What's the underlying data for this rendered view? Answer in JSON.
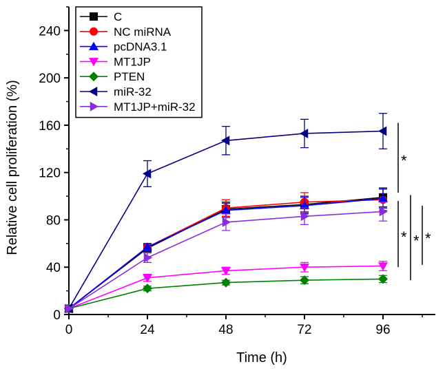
{
  "chart_data": {
    "type": "line",
    "title": "",
    "xlabel": "Time (h)",
    "ylabel": "Relative cell proliferation (%)",
    "xlim": [
      0,
      112
    ],
    "ylim": [
      0,
      260
    ],
    "xticks": [
      0,
      24,
      48,
      72,
      96
    ],
    "yticks": [
      0,
      40,
      80,
      120,
      160,
      200,
      240
    ],
    "x": [
      0,
      24,
      48,
      72,
      96
    ],
    "legend_position": "top-left",
    "grid": false,
    "series": [
      {
        "name": "C",
        "values": [
          5,
          56,
          89,
          93,
          99
        ],
        "errors": [
          0,
          3,
          6,
          7,
          8
        ],
        "color": "#000000",
        "marker": "square"
      },
      {
        "name": "NC miRNA",
        "values": [
          5,
          57,
          90,
          95,
          97
        ],
        "errors": [
          0,
          3,
          7,
          8,
          9
        ],
        "color": "#ff0000",
        "marker": "circle"
      },
      {
        "name": "pcDNA3.1",
        "values": [
          5,
          57,
          88,
          92,
          98
        ],
        "errors": [
          0,
          3,
          6,
          7,
          8
        ],
        "color": "#0000ff",
        "marker": "triangle-up"
      },
      {
        "name": "MT1JP",
        "values": [
          5,
          31,
          37,
          40,
          41
        ],
        "errors": [
          0,
          3,
          3,
          4,
          4
        ],
        "color": "#ff00ff",
        "marker": "triangle-down"
      },
      {
        "name": "PTEN",
        "values": [
          5,
          22,
          27,
          29,
          30
        ],
        "errors": [
          0,
          2,
          2,
          3,
          3
        ],
        "color": "#008000",
        "marker": "diamond"
      },
      {
        "name": "miR-32",
        "values": [
          5,
          119,
          147,
          153,
          155
        ],
        "errors": [
          0,
          11,
          12,
          12,
          15
        ],
        "color": "#000080",
        "marker": "triangle-left"
      },
      {
        "name": "MT1JP+miR-32",
        "values": [
          5,
          48,
          78,
          83,
          87
        ],
        "errors": [
          0,
          4,
          7,
          7,
          8
        ],
        "color": "#8a2be2",
        "marker": "triangle-right"
      }
    ],
    "annotations": [
      {
        "text": "*",
        "y_range": [
          99,
          155
        ]
      },
      {
        "text": "*",
        "y_range": [
          41,
          99
        ]
      },
      {
        "text": "*",
        "y_range": [
          30,
          99
        ]
      },
      {
        "text": "*",
        "y_range": [
          41,
          87
        ]
      }
    ]
  }
}
